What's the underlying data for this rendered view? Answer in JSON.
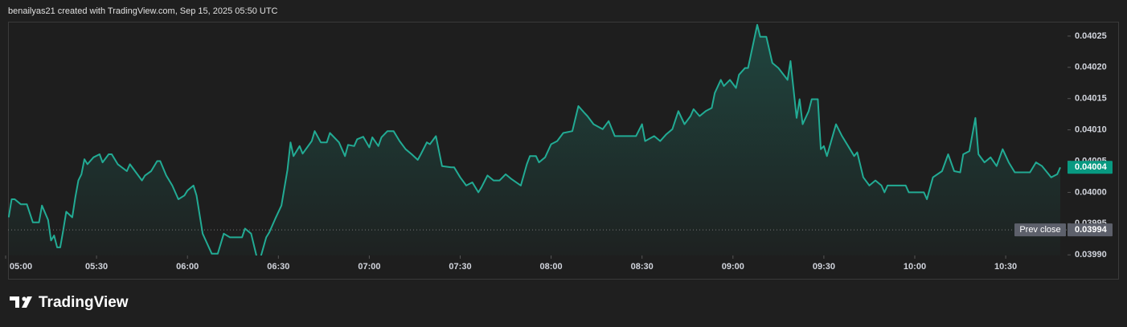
{
  "chart_data": {
    "type": "area",
    "header": "benailyas21 created with TradingView.com, Sep 15, 2025 05:50 UTC",
    "brand": "TradingView",
    "color": "#22ab94",
    "x": [
      "05:01",
      "05:02",
      "05:03",
      "05:05",
      "05:07",
      "05:09",
      "05:11",
      "05:12",
      "05:14",
      "05:15",
      "05:16",
      "05:17",
      "05:18",
      "05:19",
      "05:20",
      "05:22",
      "05:23",
      "05:24",
      "05:25",
      "05:26",
      "05:27",
      "05:29",
      "05:31",
      "05:32",
      "05:34",
      "05:35",
      "05:37",
      "05:40",
      "05:41",
      "05:43",
      "05:45",
      "05:46",
      "05:48",
      "05:50",
      "05:51",
      "05:53",
      "05:55",
      "05:57",
      "05:59",
      "06:00",
      "06:02",
      "06:03",
      "06:05",
      "06:08",
      "06:10",
      "06:12",
      "06:14",
      "06:18",
      "06:19",
      "06:21",
      "06:23",
      "06:24",
      "06:26",
      "06:27",
      "06:29",
      "06:31",
      "06:33",
      "06:34",
      "06:35",
      "06:37",
      "06:38",
      "06:41",
      "06:42",
      "06:44",
      "06:46",
      "06:47",
      "06:50",
      "06:52",
      "06:53",
      "06:55",
      "06:56",
      "06:58",
      "07:00",
      "07:01",
      "07:03",
      "07:04",
      "07:06",
      "07:08",
      "07:10",
      "07:12",
      "07:14",
      "07:16",
      "07:17",
      "07:19",
      "07:20",
      "07:22",
      "07:24",
      "07:27",
      "07:28",
      "07:30",
      "07:32",
      "07:34",
      "07:36",
      "07:37",
      "07:39",
      "07:41",
      "07:43",
      "07:45",
      "07:47",
      "07:50",
      "07:52",
      "07:53",
      "07:55",
      "07:56",
      "07:58",
      "08:00",
      "08:02",
      "08:04",
      "08:07",
      "08:09",
      "08:11",
      "08:12",
      "08:14",
      "08:17",
      "08:19",
      "08:21",
      "08:22",
      "08:28",
      "08:30",
      "08:31",
      "08:34",
      "08:36",
      "08:38",
      "08:40",
      "08:42",
      "08:44",
      "08:46",
      "08:47",
      "08:49",
      "08:51",
      "08:53",
      "08:54",
      "08:56",
      "08:57",
      "08:59",
      "09:01",
      "09:02",
      "09:04",
      "09:05",
      "09:08",
      "09:09",
      "09:11",
      "09:13",
      "09:15",
      "09:18",
      "09:19",
      "09:21",
      "09:22",
      "09:23",
      "09:25",
      "09:26",
      "09:28",
      "09:29",
      "09:30",
      "09:31",
      "09:34",
      "09:36",
      "09:38",
      "09:40",
      "09:41",
      "09:43",
      "09:45",
      "09:47",
      "09:49",
      "09:50",
      "09:51",
      "09:57",
      "09:58",
      "10:03",
      "10:04",
      "10:06",
      "10:09",
      "10:11",
      "10:13",
      "10:15",
      "10:16",
      "10:18",
      "10:20",
      "10:21",
      "10:23",
      "10:25",
      "10:27",
      "10:29",
      "10:31",
      "10:33",
      "10:36",
      "10:38",
      "10:40",
      "10:42",
      "10:45",
      "10:47",
      "10:48"
    ],
    "values": [
      0.03996,
      0.039989,
      0.039989,
      0.039981,
      0.039981,
      0.039952,
      0.039952,
      0.039979,
      0.039956,
      0.039923,
      0.039931,
      0.039912,
      0.039912,
      0.039939,
      0.039969,
      0.03996,
      0.039992,
      0.040019,
      0.040029,
      0.040053,
      0.040045,
      0.040056,
      0.040061,
      0.040048,
      0.040061,
      0.040061,
      0.040045,
      0.040034,
      0.040045,
      0.040032,
      0.040019,
      0.040027,
      0.040034,
      0.04005,
      0.04005,
      0.040027,
      0.040011,
      0.039989,
      0.039995,
      0.040003,
      0.040011,
      0.039995,
      0.039934,
      0.039902,
      0.039902,
      0.039934,
      0.039928,
      0.039928,
      0.039942,
      0.039934,
      0.039894,
      0.039894,
      0.039928,
      0.039936,
      0.039958,
      0.039979,
      0.040036,
      0.04008,
      0.040058,
      0.040074,
      0.040062,
      0.040082,
      0.040098,
      0.04008,
      0.04008,
      0.040095,
      0.04008,
      0.040058,
      0.040076,
      0.040074,
      0.040085,
      0.040089,
      0.040072,
      0.040088,
      0.040074,
      0.040088,
      0.040098,
      0.040098,
      0.040082,
      0.040069,
      0.040061,
      0.040052,
      0.040061,
      0.04008,
      0.040077,
      0.04009,
      0.040042,
      0.04004,
      0.04004,
      0.040024,
      0.040011,
      0.040016,
      0.04,
      0.040008,
      0.040027,
      0.040019,
      0.040019,
      0.040029,
      0.040021,
      0.040011,
      0.040045,
      0.040058,
      0.040058,
      0.040048,
      0.040056,
      0.040077,
      0.040082,
      0.040095,
      0.040098,
      0.040138,
      0.040127,
      0.040122,
      0.040109,
      0.040101,
      0.040114,
      0.04009,
      0.04009,
      0.04009,
      0.040109,
      0.040082,
      0.04009,
      0.040082,
      0.040093,
      0.040101,
      0.04013,
      0.040109,
      0.040122,
      0.040133,
      0.040122,
      0.04013,
      0.040135,
      0.040159,
      0.04018,
      0.04017,
      0.04018,
      0.040167,
      0.040188,
      0.040199,
      0.040199,
      0.040268,
      0.040249,
      0.040249,
      0.040207,
      0.040199,
      0.04018,
      0.04021,
      0.040119,
      0.040149,
      0.040109,
      0.04013,
      0.040149,
      0.040149,
      0.040069,
      0.040074,
      0.040058,
      0.040109,
      0.04009,
      0.040074,
      0.040058,
      0.040064,
      0.040024,
      0.040011,
      0.040019,
      0.040011,
      0.04,
      0.040011,
      0.040011,
      0.04,
      0.04,
      0.039989,
      0.040024,
      0.040034,
      0.040061,
      0.040034,
      0.040032,
      0.040061,
      0.040066,
      0.040119,
      0.040061,
      0.040048,
      0.040056,
      0.040042,
      0.040069,
      0.040048,
      0.040032,
      0.040032,
      0.040032,
      0.040048,
      0.040042,
      0.040024,
      0.040029,
      0.04004
    ],
    "xlim": [
      "05:00",
      "10:50"
    ],
    "xticks": [
      "05:00",
      "05:30",
      "06:00",
      "06:30",
      "07:00",
      "07:30",
      "08:00",
      "08:30",
      "09:00",
      "09:30",
      "10:00",
      "10:30"
    ],
    "ylim": [
      0.039899,
      0.040273
    ],
    "yticks": [
      {
        "value": 0.0399,
        "label": "0.03990"
      },
      0.03995,
      {
        "value": 0.04,
        "label": "0.04000"
      },
      0.04005,
      {
        "value": 0.0401,
        "label": "0.04010"
      },
      0.04015,
      {
        "value": 0.0402,
        "label": "0.04020"
      },
      0.04025
    ],
    "last_price": 0.04004,
    "last_price_color": "#089981",
    "prev_close": {
      "label": "Prev close",
      "value": 0.03994
    }
  }
}
